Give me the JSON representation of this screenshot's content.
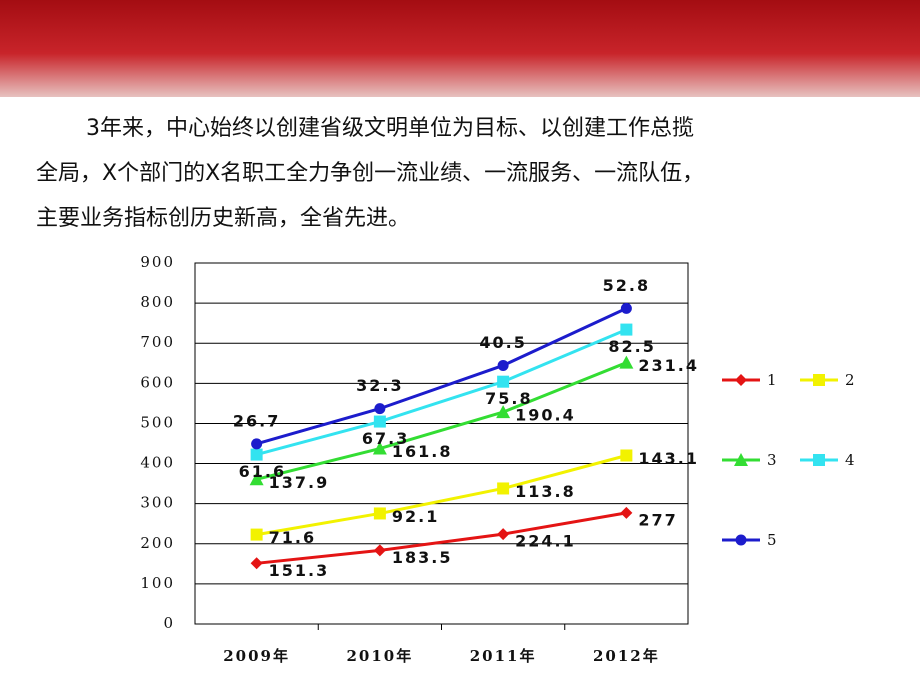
{
  "paragraph": [
    "3年来，中心始终以创建省级文明单位为目标、以创建工作总揽",
    "全局，X个部门的X名职工全力争创一流业绩、一流服务、一流队伍，",
    "主要业务指标创历史新高，全省先进。"
  ],
  "chart_data": {
    "type": "line",
    "stacked": true,
    "categories": [
      "2009年",
      "2010年",
      "2011年",
      "2012年"
    ],
    "series": [
      {
        "name": "1",
        "color": "#e41414",
        "marker": "diamond",
        "values": [
          151.3,
          183.5,
          224.1,
          277
        ]
      },
      {
        "name": "2",
        "color": "#f2f200",
        "marker": "square",
        "values": [
          71.6,
          92.1,
          113.8,
          143.1
        ]
      },
      {
        "name": "3",
        "color": "#33dd33",
        "marker": "triangle",
        "values": [
          137.9,
          161.8,
          190.4,
          231.4
        ]
      },
      {
        "name": "4",
        "color": "#33e3f0",
        "marker": "square",
        "values": [
          61.6,
          67.3,
          75.8,
          82.5
        ]
      },
      {
        "name": "5",
        "color": "#1c1ccc",
        "marker": "circle",
        "values": [
          26.7,
          32.3,
          40.5,
          52.8
        ]
      }
    ],
    "ylim": [
      0,
      900
    ],
    "yticks": [
      0,
      100,
      200,
      300,
      400,
      500,
      600,
      700,
      800,
      900
    ],
    "grid": true,
    "legend": "right"
  }
}
